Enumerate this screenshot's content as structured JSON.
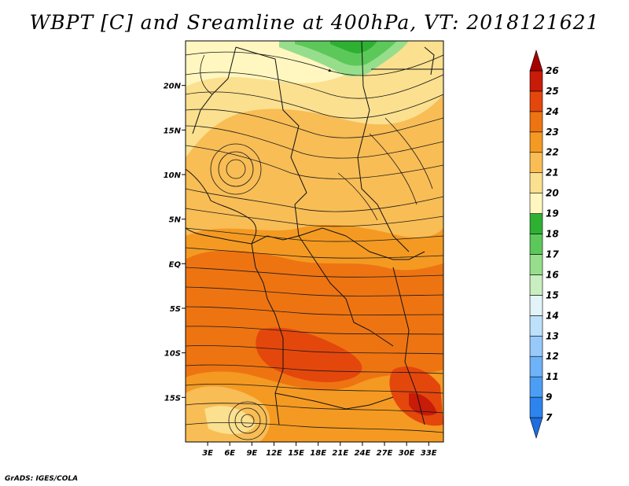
{
  "title": "WBPT [C] and Sreamline at 400hPa, VT: 2018121621",
  "footer": "GrADS: IGES/COLA",
  "map": {
    "lon_range": [
      0,
      35
    ],
    "lat_range": [
      -20,
      25
    ],
    "lat_ticks": [
      {
        "value": 20,
        "label": "20N"
      },
      {
        "value": 15,
        "label": "15N"
      },
      {
        "value": 10,
        "label": "10N"
      },
      {
        "value": 5,
        "label": "5N"
      },
      {
        "value": 0,
        "label": "EQ"
      },
      {
        "value": -5,
        "label": "5S"
      },
      {
        "value": -10,
        "label": "10S"
      },
      {
        "value": -15,
        "label": "15S"
      }
    ],
    "lon_ticks": [
      {
        "value": 3,
        "label": "3E"
      },
      {
        "value": 6,
        "label": "6E"
      },
      {
        "value": 9,
        "label": "9E"
      },
      {
        "value": 12,
        "label": "12E"
      },
      {
        "value": 15,
        "label": "15E"
      },
      {
        "value": 18,
        "label": "18E"
      },
      {
        "value": 21,
        "label": "21E"
      },
      {
        "value": 24,
        "label": "24E"
      },
      {
        "value": 27,
        "label": "27E"
      },
      {
        "value": 30,
        "label": "30E"
      },
      {
        "value": 33,
        "label": "33E"
      }
    ]
  },
  "colorbar": {
    "levels": [
      "7",
      "9",
      "11",
      "12",
      "13",
      "14",
      "15",
      "16",
      "17",
      "18",
      "19",
      "20",
      "21",
      "22",
      "23",
      "24",
      "25",
      "26"
    ],
    "colors": [
      "#1e6ee0",
      "#2d84ec",
      "#4b9ef4",
      "#6eb2f7",
      "#97c9fa",
      "#bde0fb",
      "#e2f4f8",
      "#c9eec0",
      "#96de8c",
      "#5cc85a",
      "#2eb033",
      "#fff7bf",
      "#fbe08f",
      "#f8bd55",
      "#f49a22",
      "#ee7412",
      "#e4470c",
      "#c81b08",
      "#a60000"
    ]
  }
}
